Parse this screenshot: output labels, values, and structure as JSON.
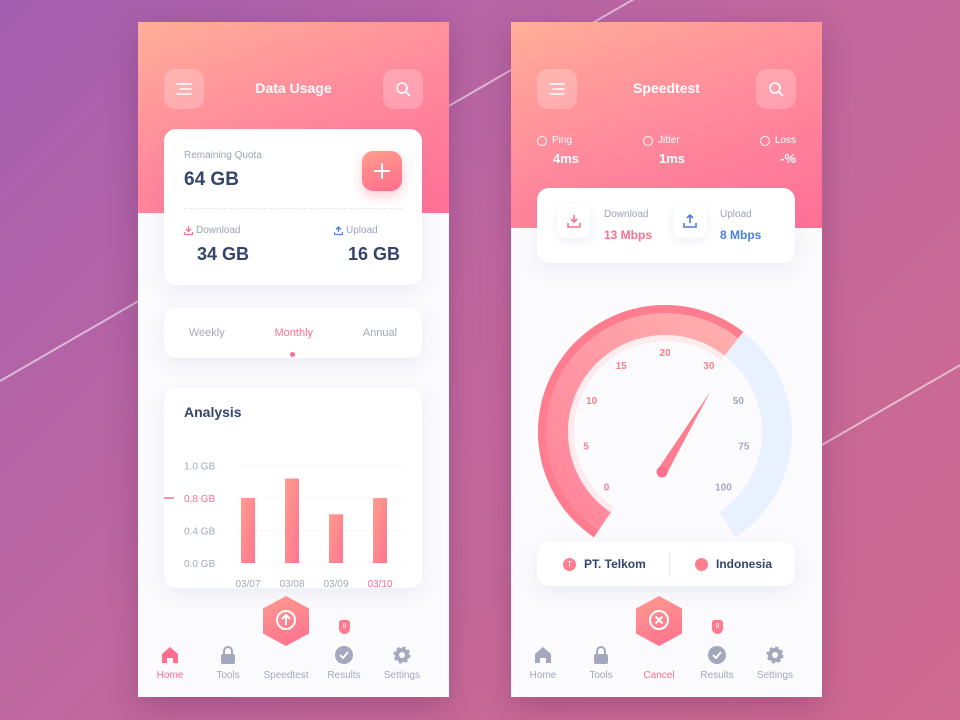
{
  "data_usage": {
    "title": "Data Usage",
    "quota": {
      "label": "Remaining Quota",
      "value": "64 GB"
    },
    "download": {
      "label": "Download",
      "value": "34 GB"
    },
    "upload": {
      "label": "Upload",
      "value": "16 GB"
    },
    "periods": [
      {
        "label": "Weekly",
        "active": false
      },
      {
        "label": "Monthly",
        "active": true
      },
      {
        "label": "Annual",
        "active": false
      }
    ],
    "nav": [
      {
        "label": "Home",
        "icon": "home-icon",
        "active": true
      },
      {
        "label": "Tools",
        "icon": "lock-icon"
      },
      {
        "label": "Speedtest",
        "icon": "upload-circle-icon"
      },
      {
        "label": "Results",
        "icon": "check-circle-icon",
        "badge": "8"
      },
      {
        "label": "Settings",
        "icon": "gear-icon"
      }
    ]
  },
  "chart_data": {
    "type": "bar",
    "title": "Analysis",
    "categories": [
      "03/07",
      "03/08",
      "03/09",
      "03/10"
    ],
    "values": [
      0.8,
      0.92,
      0.6,
      0.8
    ],
    "yticks": [
      "0.0 GB",
      "0.4 GB",
      "0.8 GB",
      "1.0 GB"
    ],
    "highlight_tick": "0.8 GB",
    "highlight_category": "03/10",
    "grid": true,
    "bar_color": "#ff7592"
  },
  "speedtest": {
    "title": "Speedtest",
    "stats": [
      {
        "label": "Ping",
        "value": "4ms"
      },
      {
        "label": "Jitter",
        "value": "1ms"
      },
      {
        "label": "Loss",
        "value": "-%"
      }
    ],
    "download": {
      "label": "Download",
      "value": "13 Mbps"
    },
    "upload": {
      "label": "Upload",
      "value": "8 Mbps"
    },
    "gauge": {
      "labels": [
        "0",
        "5",
        "10",
        "15",
        "20",
        "30",
        "50",
        "75",
        "100"
      ],
      "value_mbps": 13,
      "active_color": "#ff7d8e",
      "inactive_color": "#e8f1fd"
    },
    "isp": "PT. Telkom",
    "country": "Indonesia",
    "nav": [
      {
        "label": "Home",
        "icon": "home-icon"
      },
      {
        "label": "Tools",
        "icon": "lock-icon"
      },
      {
        "label": "Cancel",
        "icon": "close-circle-icon",
        "active": true
      },
      {
        "label": "Results",
        "icon": "check-circle-icon",
        "badge": "8"
      },
      {
        "label": "Settings",
        "icon": "gear-icon"
      }
    ]
  },
  "colors": {
    "accent": "#ff6f8f",
    "text_dark": "#34456b",
    "muted": "#a3a8bd",
    "upload_blue": "#4c7fe0"
  }
}
